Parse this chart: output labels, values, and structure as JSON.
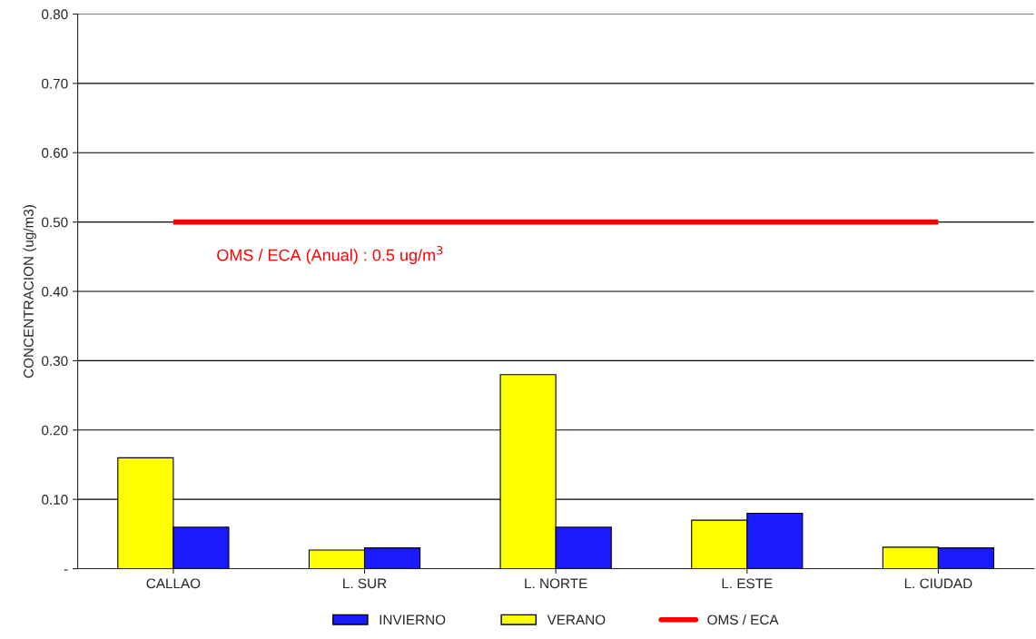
{
  "chart_data": {
    "type": "bar",
    "ylabel": "CONCENTRACION (ug/m3)",
    "categories": [
      "CALLAO",
      "L. SUR",
      "L. NORTE",
      "L. ESTE",
      "L. CIUDAD"
    ],
    "series": [
      {
        "name": "VERANO",
        "color": "#ffff00",
        "values": [
          0.16,
          0.027,
          0.28,
          0.07,
          0.031
        ]
      },
      {
        "name": "INVIERNO",
        "color": "#1a1aff",
        "values": [
          0.06,
          0.03,
          0.06,
          0.08,
          0.03
        ]
      },
      {
        "name": "OMS / ECA",
        "type": "line",
        "color": "#ff0000",
        "values": [
          0.5,
          0.5,
          0.5,
          0.5,
          0.5
        ]
      }
    ],
    "annotations": [
      "OMS / ECA (Anual) : 0.5 ug/m$^{3}$"
    ],
    "ylim": [
      0,
      0.8
    ],
    "yticks": [
      {
        "value": 0,
        "label": "-"
      },
      {
        "value": 0.1,
        "label": "0.10"
      },
      {
        "value": 0.2,
        "label": "0.20"
      },
      {
        "value": 0.3,
        "label": "0.30"
      },
      {
        "value": 0.4,
        "label": "0.40"
      },
      {
        "value": 0.5,
        "label": "0.50"
      },
      {
        "value": 0.6,
        "label": "0.60"
      },
      {
        "value": 0.7,
        "label": "0.70"
      },
      {
        "value": 0.8,
        "label": "0.80"
      }
    ],
    "grid": "y",
    "legend": "bottom"
  }
}
